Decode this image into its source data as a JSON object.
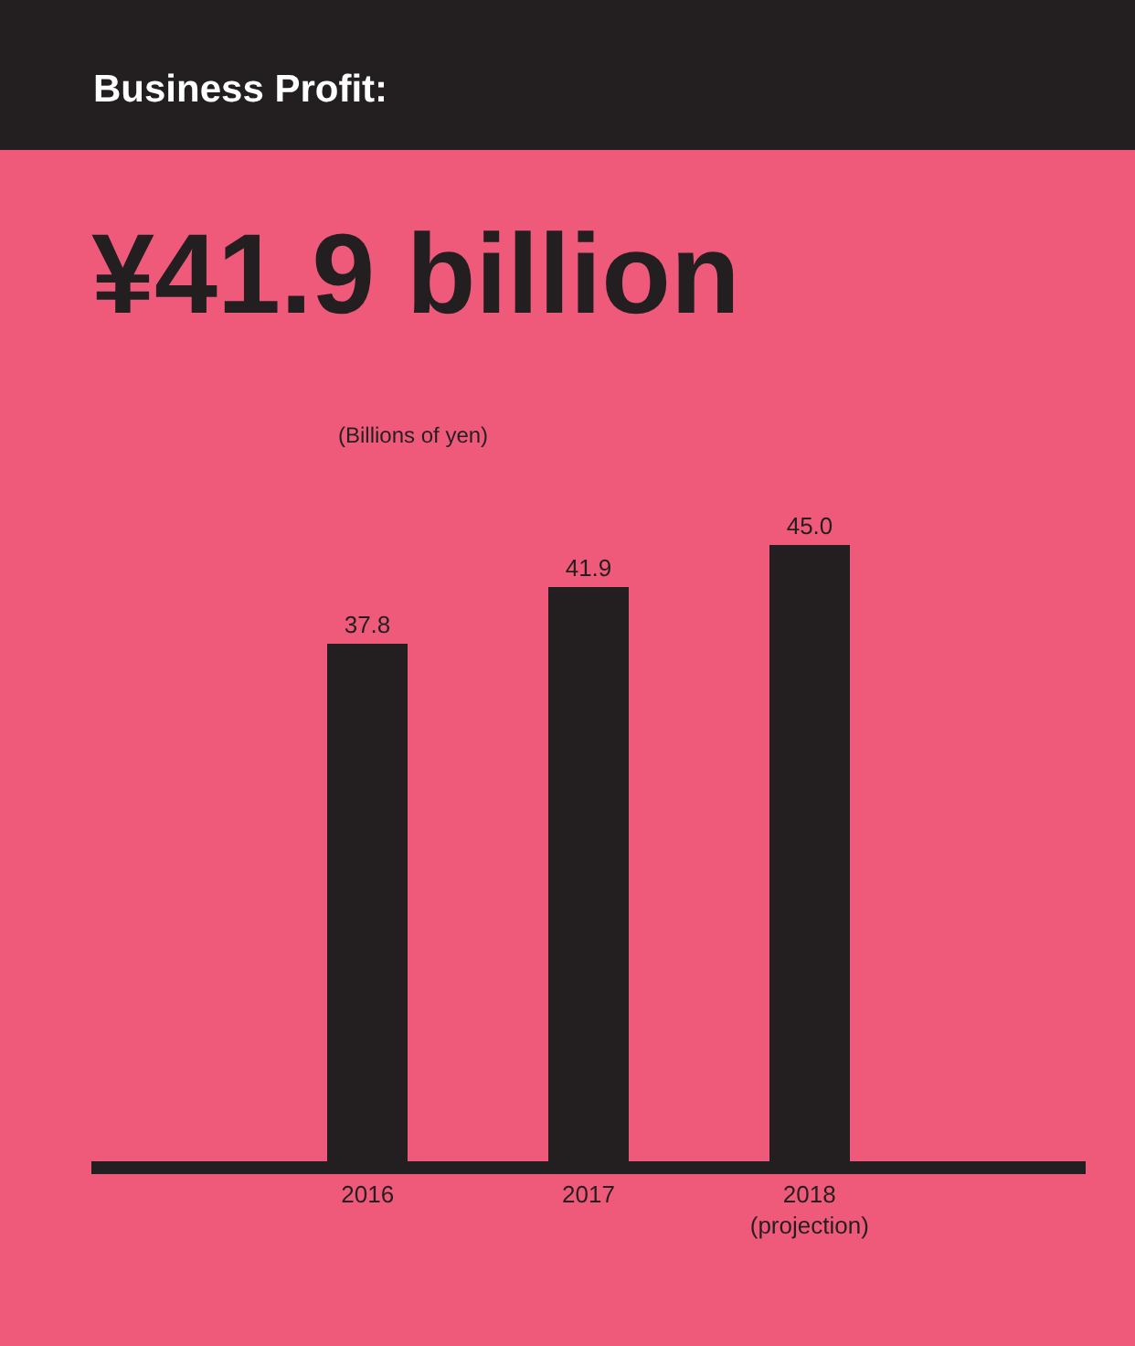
{
  "chart_data": {
    "type": "bar",
    "title": "Business Profit:",
    "subtitle": "¥41.9 billion",
    "annotations": [
      "(Billions of yen)"
    ],
    "categories": [
      "2016",
      "2017",
      "2018\n(projection)"
    ],
    "values": [
      37.8,
      41.9,
      45.0
    ],
    "value_labels": [
      "37.8",
      "41.9",
      "45.0"
    ],
    "color": "#231f20",
    "grid": false
  }
}
